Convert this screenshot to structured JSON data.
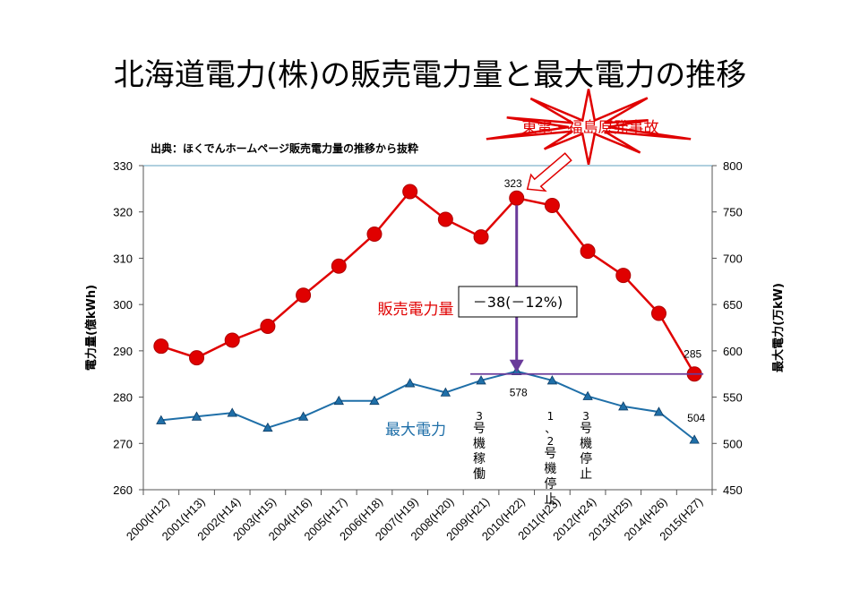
{
  "title": "北海道電力(株)の販売電力量と最大電力の推移",
  "source_note": "出典：ほくでんホームページ販売電力量の推移から抜粋",
  "callout": "東電・福島原発事故",
  "change_label": "－38(－12%)",
  "colors": {
    "sales": "#e00000",
    "peak": "#1f6fa8",
    "marker": "#6a3a9a",
    "gridline": "#7fb3cc"
  },
  "chart_data": {
    "type": "line",
    "categories": [
      "2000(H12)",
      "2001(H13)",
      "2002(H14)",
      "2003(H15)",
      "2004(H16)",
      "2005(H17)",
      "2006(H18)",
      "2007(H19)",
      "2008(H20)",
      "2009(H21)",
      "2010(H22)",
      "2011(H23)",
      "2012(H24)",
      "2013(H25)",
      "2014(H26)",
      "2015(H27)"
    ],
    "ylabel": "電力量(億kWh)",
    "y2label": "最大電力(万kW)",
    "ylim": [
      260,
      330
    ],
    "y2lim": [
      450,
      800
    ],
    "yticks": [
      "260",
      "270",
      "280",
      "290",
      "300",
      "310",
      "320",
      "330"
    ],
    "y2ticks": [
      "450",
      "500",
      "550",
      "600",
      "650",
      "700",
      "750",
      "800"
    ],
    "grid": "top line only",
    "series": [
      {
        "name": "販売電力量",
        "axis": "left",
        "marker": "circle",
        "values": [
          291,
          288.5,
          292.3,
          295.3,
          302,
          308.3,
          315.2,
          324.4,
          318.4,
          314.6,
          323,
          321.4,
          311.5,
          306.3,
          298.1,
          285
        ]
      },
      {
        "name": "最大電力",
        "axis": "right",
        "marker": "triangle",
        "values": [
          525,
          529,
          533,
          517,
          529,
          546,
          546,
          565,
          555,
          568,
          578,
          568,
          551,
          540,
          534,
          504
        ]
      }
    ],
    "data_labels": [
      {
        "series": 0,
        "index": 10,
        "text": "323"
      },
      {
        "series": 0,
        "index": 15,
        "text": "285"
      },
      {
        "series": 1,
        "index": 10,
        "text": "578"
      },
      {
        "series": 1,
        "index": 15,
        "text": "504"
      }
    ],
    "annotations": [
      {
        "index": 9,
        "text": "3号機稼働"
      },
      {
        "index": 11,
        "text": "1、2号機停止"
      },
      {
        "index": 12,
        "text": "3号機停止"
      }
    ]
  }
}
